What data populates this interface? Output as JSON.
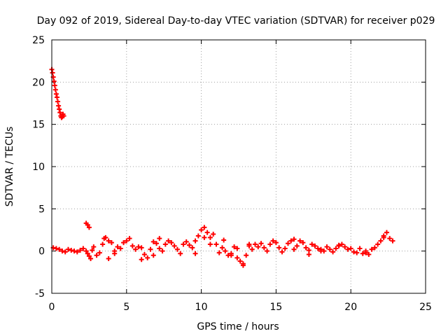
{
  "chart_data": {
    "type": "scatter",
    "title": "Day 092 of 2019, Sidereal Day-to-day VTEC variation (SDTVAR) for receiver p029",
    "xlabel": "GPS time / hours",
    "ylabel": "SDTVAR / TECUs",
    "xlim": [
      0,
      25
    ],
    "ylim": [
      -5,
      25
    ],
    "xticks": [
      0,
      5,
      10,
      15,
      20,
      25
    ],
    "yticks": [
      -5,
      0,
      5,
      10,
      15,
      20,
      25
    ],
    "xtick_labels": [
      "0",
      "5",
      "10",
      "15",
      "20",
      "25"
    ],
    "ytick_labels": [
      "-5",
      "0",
      "5",
      "10",
      "15",
      "20",
      "25"
    ],
    "grid": true,
    "marker": "+",
    "color": "#ff0000",
    "series": [
      {
        "name": "SDTVAR",
        "x": [
          0.0,
          0.05,
          0.1,
          0.15,
          0.2,
          0.25,
          0.3,
          0.35,
          0.4,
          0.45,
          0.5,
          0.55,
          0.6,
          0.65,
          0.7,
          0.75,
          0.8,
          0.1,
          0.3,
          0.5,
          0.7,
          0.9,
          1.1,
          1.3,
          1.5,
          1.7,
          1.9,
          2.1,
          2.3,
          2.5,
          2.7,
          2.4,
          2.6,
          2.8,
          3.0,
          3.2,
          3.4,
          3.6,
          3.8,
          4.0,
          4.2,
          4.4,
          4.6,
          4.8,
          5.0,
          5.2,
          5.4,
          5.6,
          5.8,
          6.0,
          6.2,
          6.4,
          6.6,
          6.8,
          7.0,
          7.2,
          7.4,
          7.6,
          7.8,
          8.0,
          8.2,
          8.4,
          8.6,
          8.8,
          9.0,
          9.2,
          9.4,
          9.6,
          9.8,
          10.0,
          10.2,
          10.4,
          10.6,
          10.8,
          11.0,
          11.2,
          11.4,
          11.6,
          11.8,
          12.0,
          12.2,
          12.4,
          12.6,
          12.8,
          13.0,
          13.2,
          13.4,
          13.6,
          13.8,
          14.0,
          14.2,
          14.4,
          14.6,
          14.8,
          15.0,
          15.2,
          15.4,
          15.6,
          15.8,
          16.0,
          16.2,
          16.4,
          16.6,
          16.8,
          17.0,
          17.2,
          17.4,
          17.6,
          17.8,
          18.0,
          18.2,
          18.4,
          18.6,
          18.8,
          19.0,
          19.2,
          19.4,
          19.6,
          19.8,
          20.0,
          20.2,
          20.4,
          20.6,
          20.8,
          21.0,
          21.2,
          21.4,
          21.6,
          21.8,
          22.0,
          22.2,
          22.4,
          22.6,
          22.8,
          2.3,
          2.4,
          2.5,
          3.5,
          3.8,
          4.2,
          6.0,
          6.8,
          7.2,
          9.6,
          10.2,
          10.6,
          11.5,
          12.0,
          12.4,
          12.8,
          13.2,
          16.2,
          17.2,
          18.0,
          19.2,
          21.0,
          22.2
        ],
        "y": [
          21.5,
          21.1,
          20.6,
          20.1,
          19.6,
          19.1,
          18.6,
          18.2,
          17.7,
          17.2,
          16.8,
          16.4,
          16.0,
          15.8,
          15.9,
          16.2,
          16.0,
          0.4,
          0.3,
          0.2,
          0.0,
          -0.1,
          0.2,
          0.1,
          0.0,
          -0.1,
          0.1,
          0.3,
          0.0,
          -0.6,
          0.1,
          -0.3,
          -0.9,
          0.5,
          -0.5,
          -0.2,
          0.8,
          1.6,
          1.2,
          1.0,
          -0.3,
          0.5,
          0.3,
          1.0,
          1.2,
          1.5,
          0.6,
          0.2,
          0.5,
          0.4,
          -0.4,
          -0.8,
          0.2,
          1.1,
          0.9,
          0.3,
          0.0,
          0.8,
          1.2,
          1.0,
          0.6,
          0.2,
          -0.3,
          0.8,
          1.1,
          0.7,
          0.4,
          1.2,
          1.8,
          2.5,
          2.8,
          2.2,
          1.6,
          2.0,
          0.8,
          -0.2,
          0.4,
          0.0,
          -0.5,
          -0.3,
          0.5,
          0.3,
          -1.2,
          -1.5,
          -0.5,
          0.6,
          0.2,
          0.8,
          0.5,
          0.9,
          0.4,
          0.0,
          0.8,
          1.2,
          1.0,
          0.4,
          -0.1,
          0.3,
          0.9,
          1.2,
          1.4,
          0.6,
          1.2,
          1.0,
          0.4,
          0.1,
          0.8,
          0.6,
          0.3,
          0.2,
          0.0,
          0.5,
          0.2,
          -0.1,
          0.3,
          0.6,
          0.8,
          0.5,
          0.2,
          0.3,
          -0.1,
          -0.2,
          0.3,
          -0.3,
          -0.2,
          -0.4,
          0.2,
          0.4,
          0.8,
          1.2,
          1.6,
          2.2,
          1.5,
          1.2,
          3.3,
          3.1,
          2.8,
          1.5,
          -0.9,
          0.0,
          -1.0,
          -0.5,
          1.5,
          -0.3,
          1.6,
          0.8,
          1.3,
          -0.5,
          -0.8,
          -1.7,
          0.8,
          0.2,
          -0.4,
          0.0,
          0.7,
          0.0,
          1.8
        ]
      }
    ]
  }
}
